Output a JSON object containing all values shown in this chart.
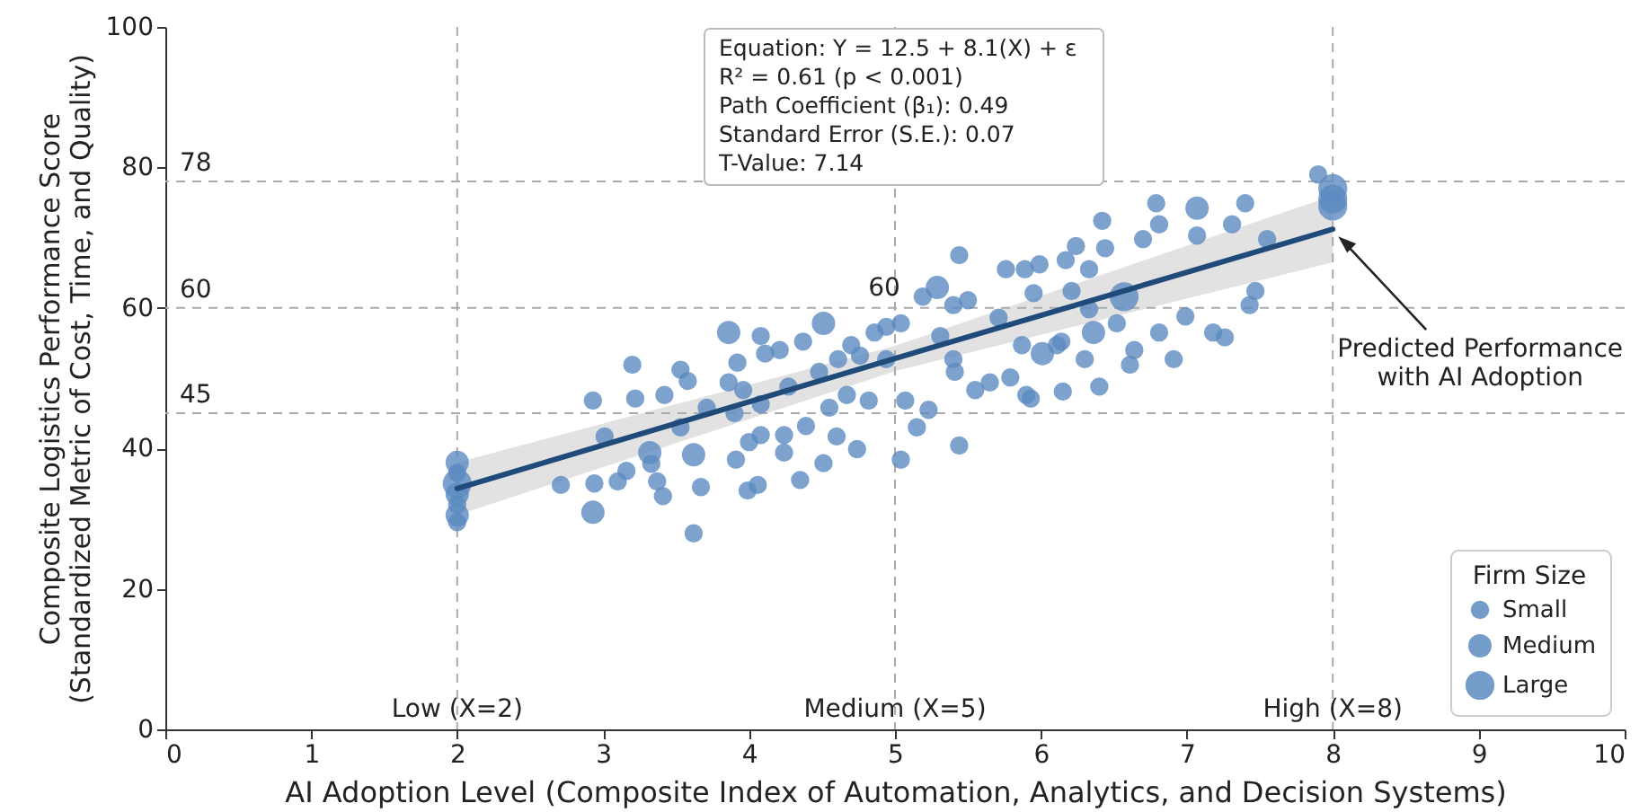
{
  "chart_data": {
    "type": "bubble",
    "xlabel": "AI Adoption Level (Composite Index of Automation, Analytics, and Decision Systems)",
    "ylabel": "Composite Logistics Performance Score\n(Standardized Metric of Cost, Time, and Quality)",
    "legend_title": "Firm Size",
    "legend": "bottom right",
    "grid": false,
    "xlim": [
      0,
      10
    ],
    "xticks": [
      0,
      1,
      2,
      3,
      4,
      5,
      6,
      7,
      8,
      9,
      10
    ],
    "ylim": [
      0,
      100
    ],
    "yticks": [
      0,
      20,
      40,
      60,
      80,
      100
    ],
    "series": [
      {
        "name": "Small",
        "color": "#5b8bc0",
        "marker": "circle",
        "x": [
          2,
          2,
          2,
          2.71,
          2.93,
          2.94,
          3.01,
          3.1,
          3.16,
          3.2,
          3.22,
          3.33,
          3.37,
          3.41,
          3.42,
          3.53,
          3.53,
          3.58,
          3.62,
          3.67,
          3.71,
          3.86,
          3.9,
          3.91,
          3.92,
          3.96,
          3.99,
          4.0,
          4.06,
          4.08,
          4.08,
          4.11,
          4.21,
          4.24,
          4.27,
          4.08,
          4.24,
          4.37,
          4.35,
          4.39,
          4.48,
          4.51,
          4.55,
          4.6,
          4.61,
          4.67,
          4.7,
          4.74,
          4.76,
          4.82,
          4.86,
          4.94,
          4.94,
          5.04,
          5.07,
          5.04,
          5.15,
          5.19,
          5.23,
          5.31,
          5.4,
          5.4,
          5.41,
          5.44,
          5.44,
          5.5,
          5.55,
          5.65,
          5.71,
          5.76,
          5.79,
          5.87,
          5.89,
          5.9,
          5.95,
          5.99,
          6.11,
          6.15,
          6.17,
          6.21,
          6.24,
          5.93,
          6.14,
          6.3,
          6.33,
          6.33,
          6.4,
          6.42,
          6.44,
          6.52,
          6.61,
          6.64,
          6.7,
          6.79,
          6.81,
          6.81,
          6.91,
          6.99,
          7.07,
          7.18,
          7.26,
          7.31,
          7.4,
          7.43,
          7.47,
          7.55,
          7.9
        ],
        "values": [
          36.5,
          32,
          29.5,
          34.8,
          46.8,
          35.0,
          41.7,
          35.3,
          36.8,
          51.9,
          47.1,
          37.8,
          35.3,
          33.2,
          47.6,
          51.2,
          43.0,
          49.6,
          27.9,
          34.5,
          45.8,
          49.4,
          45.0,
          38.4,
          52.2,
          48.3,
          34.0,
          40.9,
          34.8,
          56.0,
          41.9,
          53.5,
          54.0,
          39.4,
          48.8,
          46.3,
          41.9,
          55.2,
          35.5,
          43.2,
          50.9,
          37.9,
          45.8,
          41.7,
          52.7,
          47.6,
          54.7,
          39.9,
          53.2,
          46.8,
          56.5,
          57.3,
          52.7,
          57.8,
          46.8,
          38.4,
          43.0,
          61.6,
          45.5,
          56.0,
          60.4,
          52.7,
          50.9,
          67.5,
          40.4,
          61.1,
          48.3,
          49.4,
          58.6,
          65.5,
          50.1,
          54.7,
          65.5,
          47.6,
          62.1,
          66.2,
          54.7,
          48.1,
          66.8,
          62.4,
          68.8,
          47.1,
          55.2,
          52.7,
          65.5,
          59.8,
          48.8,
          72.4,
          68.5,
          57.8,
          51.9,
          54.0,
          69.8,
          74.9,
          71.9,
          56.5,
          52.7,
          58.8,
          70.3,
          56.5,
          55.8,
          71.9,
          74.9,
          60.4,
          62.4,
          69.8,
          79.0
        ],
        "sizes": [
          0.4,
          0.4,
          0.4,
          0.4,
          0.4,
          0.4,
          0.4,
          0.4,
          0.4,
          0.4,
          0.4,
          0.4,
          0.4,
          0.4,
          0.4,
          0.4,
          0.4,
          0.4,
          0.4,
          0.4,
          0.4,
          0.4,
          0.4,
          0.4,
          0.4,
          0.4,
          0.4,
          0.4,
          0.4,
          0.4,
          0.4,
          0.4,
          0.4,
          0.4,
          0.4,
          0.4,
          0.4,
          0.4,
          0.4,
          0.4,
          0.4,
          0.4,
          0.4,
          0.4,
          0.4,
          0.4,
          0.4,
          0.4,
          0.4,
          0.4,
          0.4,
          0.4,
          0.4,
          0.4,
          0.4,
          0.4,
          0.4,
          0.4,
          0.4,
          0.4,
          0.4,
          0.4,
          0.4,
          0.4,
          0.4,
          0.4,
          0.4,
          0.4,
          0.4,
          0.4,
          0.4,
          0.4,
          0.4,
          0.4,
          0.4,
          0.4,
          0.4,
          0.4,
          0.4,
          0.4,
          0.4,
          0.4,
          0.4,
          0.4,
          0.4,
          0.4,
          0.4,
          0.4,
          0.4,
          0.4,
          0.4,
          0.4,
          0.4,
          0.4,
          0.4,
          0.4,
          0.4,
          0.4,
          0.4,
          0.4,
          0.4,
          0.4,
          0.4,
          0.4,
          0.4,
          0.4,
          0.4
        ]
      },
      {
        "name": "Medium",
        "color": "#5b8bc0",
        "marker": "circle",
        "x": [
          2,
          2,
          2,
          2.93,
          3.32,
          3.62,
          3.86,
          4.51,
          5.29,
          6.01,
          6.36,
          7.07
        ],
        "values": [
          38,
          33.5,
          30.5,
          30.9,
          39.4,
          39.1,
          56.5,
          57.8,
          62.9,
          53.5,
          56.5,
          74.2
        ],
        "sizes": [
          0.65,
          0.65,
          0.65,
          0.65,
          0.65,
          0.65,
          0.65,
          0.65,
          0.65,
          0.65,
          0.65,
          0.65
        ]
      },
      {
        "name": "Large",
        "color": "#5b8bc0",
        "marker": "circle",
        "x": [
          2,
          6.57,
          8,
          8,
          8
        ],
        "values": [
          35,
          61.6,
          77,
          75.5,
          74.5
        ],
        "sizes": [
          1,
          1,
          1,
          1,
          1
        ]
      },
      {
        "type": "line",
        "color": "#1f4a7a",
        "x": [
          2,
          5,
          8
        ],
        "values": [
          34.3,
          52.8,
          71.2
        ],
        "lower": [
          30.5,
          51,
          66.5
        ],
        "upper": [
          38,
          54.6,
          76
        ]
      }
    ],
    "ref_lines": [
      {
        "axis": "x",
        "value": 2,
        "label": "Low (X=2)",
        "line_style": "dashed",
        "color": "#aaaaaa"
      },
      {
        "axis": "x",
        "value": 5,
        "label": "Medium (X=5)",
        "line_style": "dashed",
        "color": "#aaaaaa"
      },
      {
        "axis": "x",
        "value": 8,
        "label": "High (X=8)",
        "line_style": "dashed",
        "color": "#aaaaaa"
      },
      {
        "axis": "y",
        "value": 45,
        "label": "45",
        "line_style": "dashed",
        "color": "#aaaaaa"
      },
      {
        "axis": "y",
        "value": 60,
        "label": "60",
        "line_style": "dashed",
        "color": "#aaaaaa"
      },
      {
        "axis": "y",
        "value": 78,
        "label": "78",
        "line_style": "dashed",
        "color": "#aaaaaa"
      }
    ],
    "annotations": [
      "Equation: Y = 12.5 + 8.1(X) + ε",
      "R² = 0.61 (p < 0.001)",
      "Path Coefficient (β₁): 0.49",
      "Standard Error (S.E.): 0.07",
      "T-Value: 7.14",
      {
        "text": "60",
        "x": 5,
        "y": 60
      },
      "Predicted Performance\nwith AI Adoption"
    ]
  }
}
